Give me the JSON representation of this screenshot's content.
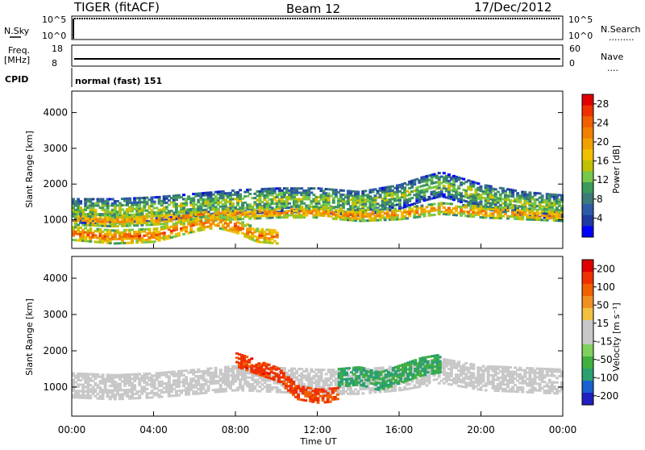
{
  "header": {
    "left_title": "TIGER (fitACF)",
    "center_title": "Beam 12",
    "right_title": "17/Dec/2012"
  },
  "top_panels": {
    "nsky_label": "N.Sky",
    "nsearch_label": "N.Search",
    "nsearch_marker": ".........",
    "nsky_ticks": [
      "10^5",
      "10^0"
    ],
    "nsearch_ticks": [
      "10^5",
      "10^0"
    ],
    "freq_label_1": "Freq.",
    "freq_label_2": "[MHz]",
    "freq_ticks": [
      "18",
      "8"
    ],
    "nave_label": "Nave",
    "nave_marker": "....",
    "nave_ticks": [
      "60",
      "0"
    ],
    "cpid_label": "CPID",
    "cpid_value": "normal (fast) 151"
  },
  "chart_data": [
    {
      "type": "heatmap",
      "title": "",
      "xlabel": "Time UT",
      "ylabel": "Slant Range [km]",
      "x_ticks": [
        "00:00",
        "04:00",
        "08:00",
        "12:00",
        "16:00",
        "20:00",
        "00:00"
      ],
      "y_ticks": [
        "1000",
        "2000",
        "3000",
        "4000"
      ],
      "ylim": [
        200,
        4600
      ],
      "colorbar": {
        "label": "Power [dB]",
        "ticks": [
          "4",
          "8",
          "12",
          "16",
          "20",
          "24",
          "28"
        ],
        "range": [
          0,
          30
        ],
        "colors": [
          "#0000ff",
          "#1e3aa0",
          "#2e5aa8",
          "#3a7a78",
          "#3c9a5a",
          "#76c84a",
          "#c0c000",
          "#f0c000",
          "#f0a000",
          "#f08000",
          "#f06000",
          "#f03000",
          "#e00000"
        ]
      },
      "bands": [
        {
          "name": "main",
          "x": [
            0,
            2,
            4,
            6,
            8,
            10,
            12,
            14,
            16,
            17,
            18,
            20,
            22,
            24
          ],
          "y": [
            1300,
            1300,
            1350,
            1450,
            1550,
            1600,
            1600,
            1500,
            1700,
            1900,
            2050,
            1700,
            1500,
            1400
          ],
          "width": 350,
          "power": 14
        },
        {
          "name": "inner",
          "x": [
            0,
            2,
            4,
            6,
            8,
            10,
            12,
            14,
            16,
            18,
            20,
            22,
            24
          ],
          "y": [
            1050,
            1000,
            1050,
            1150,
            1200,
            1250,
            1250,
            1150,
            1200,
            1350,
            1250,
            1200,
            1150
          ],
          "width": 150,
          "power": 22
        },
        {
          "name": "low",
          "x": [
            0,
            2,
            4,
            6,
            7,
            8,
            9,
            10
          ],
          "y": [
            650,
            550,
            600,
            900,
            1000,
            850,
            600,
            550
          ],
          "width": 180,
          "power": 24
        }
      ]
    },
    {
      "type": "heatmap",
      "title": "",
      "xlabel": "Time UT",
      "ylabel": "Slant Range [km]",
      "x_ticks": [
        "00:00",
        "04:00",
        "08:00",
        "12:00",
        "16:00",
        "20:00",
        "00:00"
      ],
      "y_ticks": [
        "1000",
        "2000",
        "3000",
        "4000"
      ],
      "ylim": [
        200,
        4600
      ],
      "colorbar": {
        "label": "Velocity [m s⁻¹]",
        "ticks": [
          "200",
          "100",
          "50",
          "15",
          "-15",
          "-50",
          "-100",
          "-200"
        ],
        "range": [
          -250,
          250
        ],
        "colors": [
          "#2020c0",
          "#1a60d0",
          "#2aa070",
          "#40b040",
          "#80d060",
          "#c8c8c8",
          "#c8c8c8",
          "#f0c040",
          "#f09020",
          "#f06000",
          "#f03000",
          "#e00000"
        ]
      },
      "bands": [
        {
          "name": "ground",
          "x": [
            0,
            2,
            4,
            6,
            8,
            10,
            12,
            14,
            16,
            18,
            20,
            22,
            24
          ],
          "y": [
            1100,
            1050,
            1100,
            1200,
            1300,
            1250,
            1200,
            1200,
            1300,
            1500,
            1300,
            1250,
            1200
          ],
          "width": 350,
          "velocity": 0
        },
        {
          "name": "east",
          "x": [
            13,
            14,
            15,
            16,
            17,
            18
          ],
          "y": [
            1300,
            1350,
            1200,
            1400,
            1600,
            1700
          ],
          "width": 250,
          "velocity": -130
        },
        {
          "name": "west",
          "x": [
            8,
            9,
            10,
            11,
            12,
            13
          ],
          "y": [
            1800,
            1600,
            1400,
            900,
            800,
            850
          ],
          "width": 200,
          "velocity": 180
        }
      ]
    }
  ]
}
